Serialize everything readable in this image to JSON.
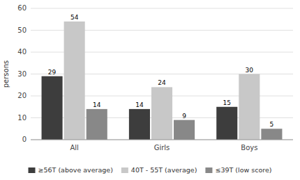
{
  "chart_data": {
    "type": "bar",
    "categories": [
      "All",
      "Girls",
      "Boys"
    ],
    "series": [
      {
        "name": "≥56T (above average)",
        "color": "#3d3d3d",
        "values": [
          29,
          14,
          15
        ]
      },
      {
        "name": "40T - 55T (average)",
        "color": "#c8c8c8",
        "values": [
          54,
          24,
          30
        ]
      },
      {
        "name": "≤39T (low score)",
        "color": "#888888",
        "values": [
          14,
          9,
          5
        ]
      }
    ],
    "y_label": "persons",
    "ylim": [
      0,
      60
    ],
    "yticks": [
      0,
      10,
      20,
      30,
      40,
      50,
      60
    ],
    "grid": true,
    "data_labels": true,
    "legend": "bottom"
  }
}
